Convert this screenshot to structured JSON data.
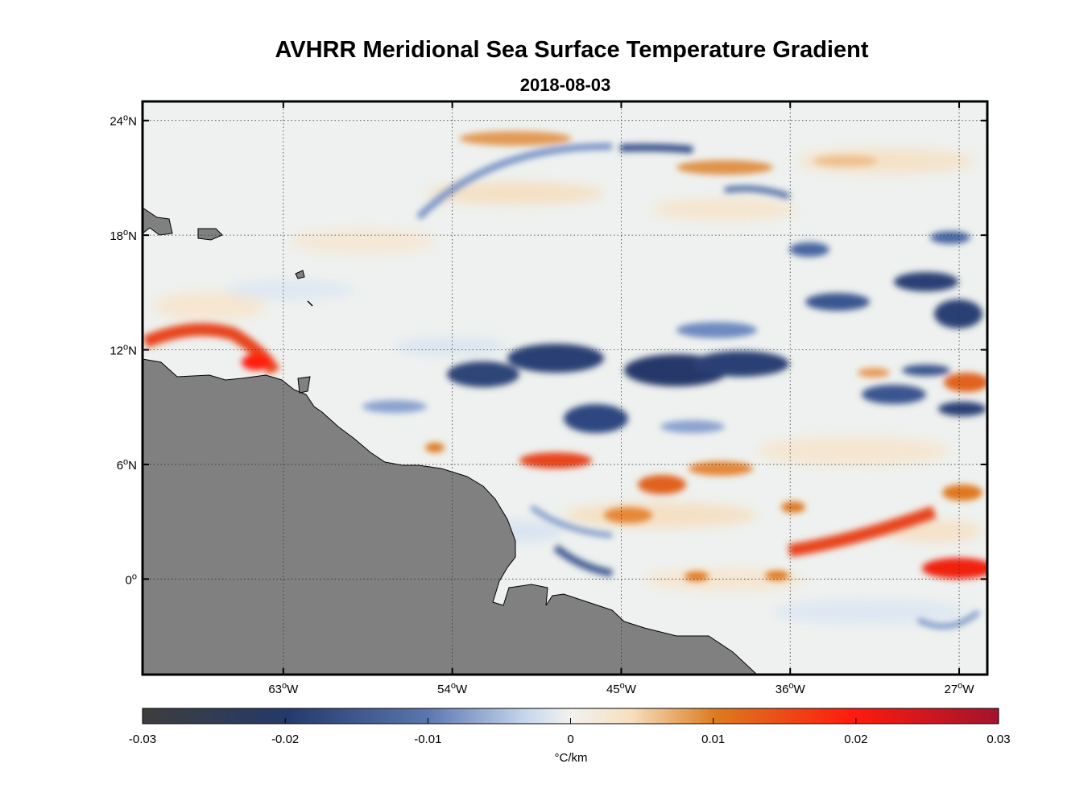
{
  "chart_data": {
    "type": "heatmap",
    "title": "AVHRR Meridional Sea Surface Temperature Gradient",
    "subtitle": "2018-08-03",
    "x_axis": {
      "range": [
        -70.5,
        -25.5
      ],
      "ticks": [
        -63,
        -54,
        -45,
        -36,
        -27
      ],
      "tick_labels": [
        "63°W",
        "54°W",
        "45°W",
        "36°W",
        "27°W"
      ]
    },
    "y_axis": {
      "range": [
        -5,
        25
      ],
      "ticks": [
        24,
        18,
        12,
        6,
        0
      ],
      "tick_labels": [
        "24°N",
        "18°N",
        "12°N",
        "6°N",
        "0°"
      ]
    },
    "grid": "dotted",
    "land_color": "#808080",
    "colorbar": {
      "range": [
        -0.03,
        0.03
      ],
      "ticks": [
        -0.03,
        -0.02,
        -0.01,
        0,
        0.01,
        0.02,
        0.03
      ],
      "tick_labels": [
        "-0.03",
        "-0.02",
        "-0.01",
        "0",
        "0.01",
        "0.02",
        "0.03"
      ],
      "label": "°C/km",
      "colors": [
        "#3d3d3d",
        "#243a6b",
        "#8fa6d4",
        "#f0f0ee",
        "#dd7a1e",
        "#ff1a0d",
        "#a3132e"
      ]
    },
    "features": [
      {
        "name": "negative gradient band",
        "lon_range": [
          -51,
          -33
        ],
        "lat_range": [
          10,
          13
        ],
        "value": -0.02
      },
      {
        "name": "negative gradient band",
        "lon_range": [
          -34,
          -26
        ],
        "lat_range": [
          13,
          16
        ],
        "value": -0.018
      },
      {
        "name": "positive gradient patch",
        "lon_range": [
          -66,
          -63
        ],
        "lat_range": [
          11,
          13
        ],
        "value": 0.02
      },
      {
        "name": "positive gradient patch",
        "lon_range": [
          -35,
          -28
        ],
        "lat_range": [
          1,
          3
        ],
        "value": 0.02
      },
      {
        "name": "positive gradient patch",
        "lon_range": [
          -28,
          -26
        ],
        "lat_range": [
          0,
          2
        ],
        "value": 0.022
      }
    ]
  }
}
